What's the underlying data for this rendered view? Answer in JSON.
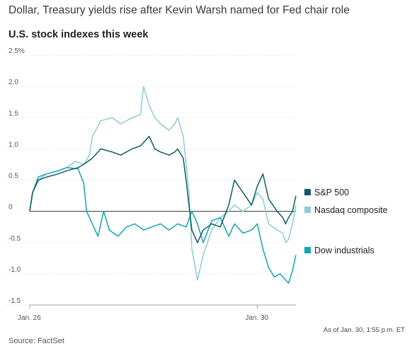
{
  "headline": "Dollar, Treasury yields rise after Kevin Warsh named for Fed chair role",
  "note": "As of Jan. 30, 1:55 p.m. ET",
  "source": "Source: FactSet",
  "colors": {
    "sp500": "#0d5c63",
    "nasdaq": "#8ecbd6",
    "dow": "#13a3b4",
    "zero_line": "#333333",
    "grid": "#cfcfcf"
  },
  "chart_data": {
    "type": "line",
    "title": "U.S. stock indexes this week",
    "xlabel": "",
    "ylabel": "",
    "y_unit": "%",
    "ylim": [
      -1.5,
      2.5
    ],
    "y_ticks": [
      {
        "value": 2.5,
        "label": "2.5%"
      },
      {
        "value": 2.0,
        "label": "2.0"
      },
      {
        "value": 1.5,
        "label": "1.5"
      },
      {
        "value": 1.0,
        "label": "1.0"
      },
      {
        "value": 0.5,
        "label": "0.5"
      },
      {
        "value": 0,
        "label": "0"
      },
      {
        "value": -0.5,
        "label": "-0.5"
      },
      {
        "value": -1.0,
        "label": "-1.0"
      },
      {
        "value": -1.5,
        "label": "-1.5"
      }
    ],
    "x_ticks": [
      {
        "day": 0,
        "label": "Jan. 26"
      },
      {
        "day": 4,
        "label": "Jan. 30"
      }
    ],
    "xlim": [
      0,
      4.68
    ],
    "grid": "horizontal",
    "legend": "right",
    "series": [
      {
        "name": "S&P 500",
        "key": "sp500",
        "x": [
          0,
          0.05,
          0.15,
          0.3,
          0.5,
          0.65,
          0.85,
          0.95,
          1.1,
          1.25,
          1.45,
          1.6,
          1.8,
          1.95,
          2.1,
          2.2,
          2.3,
          2.45,
          2.55,
          2.6,
          2.7,
          2.75,
          2.85,
          2.95,
          3.05,
          3.2,
          3.35,
          3.5,
          3.6,
          3.75,
          3.9,
          4.0,
          4.1,
          4.2,
          4.35,
          4.45,
          4.5,
          4.55,
          4.62,
          4.68
        ],
        "values": [
          0,
          0.3,
          0.5,
          0.55,
          0.6,
          0.65,
          0.7,
          0.75,
          0.85,
          1.0,
          0.95,
          0.9,
          1.0,
          1.05,
          1.2,
          1.0,
          0.95,
          0.9,
          0.95,
          1.0,
          0.85,
          0.5,
          -0.3,
          -0.5,
          -0.3,
          -0.2,
          -0.25,
          0.1,
          0.5,
          0.3,
          0.1,
          0.4,
          0.6,
          0.2,
          0.0,
          -0.1,
          -0.2,
          -0.1,
          0.0,
          0.25
        ]
      },
      {
        "name": "Nasdaq composite",
        "key": "nasdaq",
        "x": [
          0,
          0.05,
          0.15,
          0.3,
          0.5,
          0.65,
          0.8,
          0.95,
          1.05,
          1.1,
          1.25,
          1.45,
          1.6,
          1.8,
          1.95,
          2.0,
          2.1,
          2.2,
          2.3,
          2.45,
          2.55,
          2.6,
          2.7,
          2.8,
          2.85,
          2.95,
          3.05,
          3.2,
          3.35,
          3.5,
          3.6,
          3.75,
          3.9,
          4.0,
          4.1,
          4.2,
          4.35,
          4.45,
          4.5,
          4.55,
          4.62,
          4.68
        ],
        "values": [
          0,
          0.3,
          0.5,
          0.6,
          0.65,
          0.7,
          0.8,
          0.75,
          0.9,
          1.2,
          1.45,
          1.5,
          1.4,
          1.5,
          1.55,
          2.0,
          1.7,
          1.5,
          1.4,
          1.3,
          1.4,
          1.5,
          1.2,
          0.3,
          -0.6,
          -1.1,
          -0.7,
          -0.3,
          -0.1,
          0.0,
          0.1,
          0.0,
          0.1,
          0.3,
          0.2,
          -0.2,
          -0.3,
          -0.35,
          -0.5,
          -0.45,
          -0.2,
          0.1
        ]
      },
      {
        "name": "Dow industrials",
        "key": "dow",
        "x": [
          0,
          0.05,
          0.15,
          0.3,
          0.5,
          0.65,
          0.85,
          0.95,
          1.0,
          1.2,
          1.3,
          1.4,
          1.55,
          1.7,
          1.85,
          2.0,
          2.15,
          2.3,
          2.45,
          2.6,
          2.75,
          2.85,
          2.95,
          3.05,
          3.2,
          3.35,
          3.5,
          3.6,
          3.75,
          3.9,
          4.0,
          4.1,
          4.2,
          4.3,
          4.4,
          4.5,
          4.55,
          4.62,
          4.68
        ],
        "values": [
          0,
          0.3,
          0.55,
          0.6,
          0.65,
          0.7,
          0.68,
          0.45,
          0.0,
          -0.4,
          0.0,
          -0.3,
          -0.4,
          -0.25,
          -0.2,
          -0.3,
          -0.25,
          -0.2,
          -0.3,
          -0.2,
          -0.25,
          0.0,
          -0.2,
          -0.5,
          -0.15,
          -0.1,
          -0.4,
          -0.2,
          -0.35,
          -0.3,
          -0.2,
          -0.6,
          -0.9,
          -1.05,
          -1.0,
          -1.1,
          -1.15,
          -0.95,
          -0.7
        ]
      }
    ]
  }
}
